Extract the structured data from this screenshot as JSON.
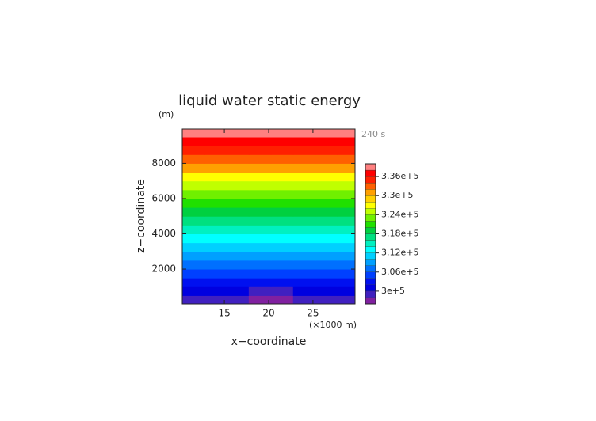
{
  "chart_data": {
    "type": "contour",
    "title": "liquid water static energy",
    "y_unit": "(m)",
    "time_label": "240 s",
    "x_unit": "(×1000 m)",
    "xlabel": "x−coordinate",
    "ylabel": "z−coordinate",
    "xlim": [
      10.25,
      29.75
    ],
    "ylim": [
      25,
      9950
    ],
    "xticks": [
      15,
      20,
      25
    ],
    "yticks": [
      2000,
      4000,
      6000,
      8000
    ],
    "x": [
      11.5,
      14,
      16.5,
      19,
      21.5,
      24,
      26.5,
      29
    ],
    "z": [
      250,
      750,
      1250,
      1750,
      2250,
      2750,
      3250,
      3750,
      4250,
      4750,
      5250,
      5750,
      6250,
      6750,
      7250,
      7750,
      8250,
      8750,
      9250,
      9750
    ],
    "values": [
      [
        298500,
        298500,
        298200,
        297800,
        297800,
        298200,
        298500,
        298500
      ],
      [
        300600,
        300400,
        300000,
        299500,
        299500,
        300000,
        300400,
        300600
      ],
      [
        302700,
        302700,
        302600,
        302400,
        302400,
        302600,
        302700,
        302700
      ],
      [
        304800,
        304800,
        304800,
        304800,
        304800,
        304800,
        304800,
        304800
      ],
      [
        306900,
        306900,
        306900,
        306900,
        306900,
        306900,
        306900,
        306900
      ],
      [
        309000,
        309000,
        309000,
        309000,
        309000,
        309000,
        309000,
        309000
      ],
      [
        311100,
        311100,
        311100,
        311100,
        311100,
        311100,
        311100,
        311100
      ],
      [
        313200,
        313200,
        313200,
        313200,
        313200,
        313200,
        313200,
        313200
      ],
      [
        315300,
        315300,
        315300,
        315300,
        315300,
        315300,
        315300,
        315300
      ],
      [
        317400,
        317400,
        317400,
        317400,
        317400,
        317400,
        317400,
        317400
      ],
      [
        319500,
        319500,
        319500,
        319500,
        319500,
        319500,
        319500,
        319500
      ],
      [
        321600,
        321600,
        321600,
        321600,
        321600,
        321600,
        321600,
        321600
      ],
      [
        323700,
        323700,
        323700,
        323700,
        323700,
        323700,
        323700,
        323700
      ],
      [
        325800,
        325800,
        325800,
        325800,
        325800,
        325800,
        325800,
        325800
      ],
      [
        327900,
        327900,
        327900,
        327900,
        327900,
        327900,
        327900,
        327900
      ],
      [
        330000,
        330000,
        330000,
        330000,
        330000,
        330000,
        330000,
        330000
      ],
      [
        332100,
        332100,
        332100,
        332100,
        332100,
        332100,
        332100,
        332100
      ],
      [
        334200,
        334200,
        334200,
        334200,
        334200,
        334200,
        334200,
        334200
      ],
      [
        336300,
        336300,
        336300,
        336300,
        336300,
        336300,
        336300,
        336300
      ],
      [
        338400,
        338400,
        338400,
        338400,
        338400,
        338400,
        338400,
        338400
      ]
    ],
    "levels": [
      296000,
      298000,
      300000,
      302000,
      304000,
      306000,
      308000,
      310000,
      312000,
      314000,
      316000,
      318000,
      320000,
      322000,
      324000,
      326000,
      328000,
      330000,
      332000,
      334000,
      336000,
      338000,
      340000
    ],
    "colors": [
      "#8020a0",
      "#4020c0",
      "#0000e0",
      "#0010f0",
      "#0040ff",
      "#0070ff",
      "#00a0ff",
      "#00d0ff",
      "#00ffff",
      "#00f0c0",
      "#00e080",
      "#00d040",
      "#20e000",
      "#70f000",
      "#c0ff00",
      "#ffff00",
      "#ffd000",
      "#ffa000",
      "#ff6000",
      "#ff2000",
      "#ff0000",
      "#ff8080"
    ],
    "colorbar_ticks": [
      {
        "value": 300000,
        "label": "3e+5"
      },
      {
        "value": 306000,
        "label": "3.06e+5"
      },
      {
        "value": 312000,
        "label": "3.12e+5"
      },
      {
        "value": 318000,
        "label": "3.18e+5"
      },
      {
        "value": 324000,
        "label": "3.24e+5"
      },
      {
        "value": 330000,
        "label": "3.3e+5"
      },
      {
        "value": 336000,
        "label": "3.36e+5"
      }
    ]
  }
}
